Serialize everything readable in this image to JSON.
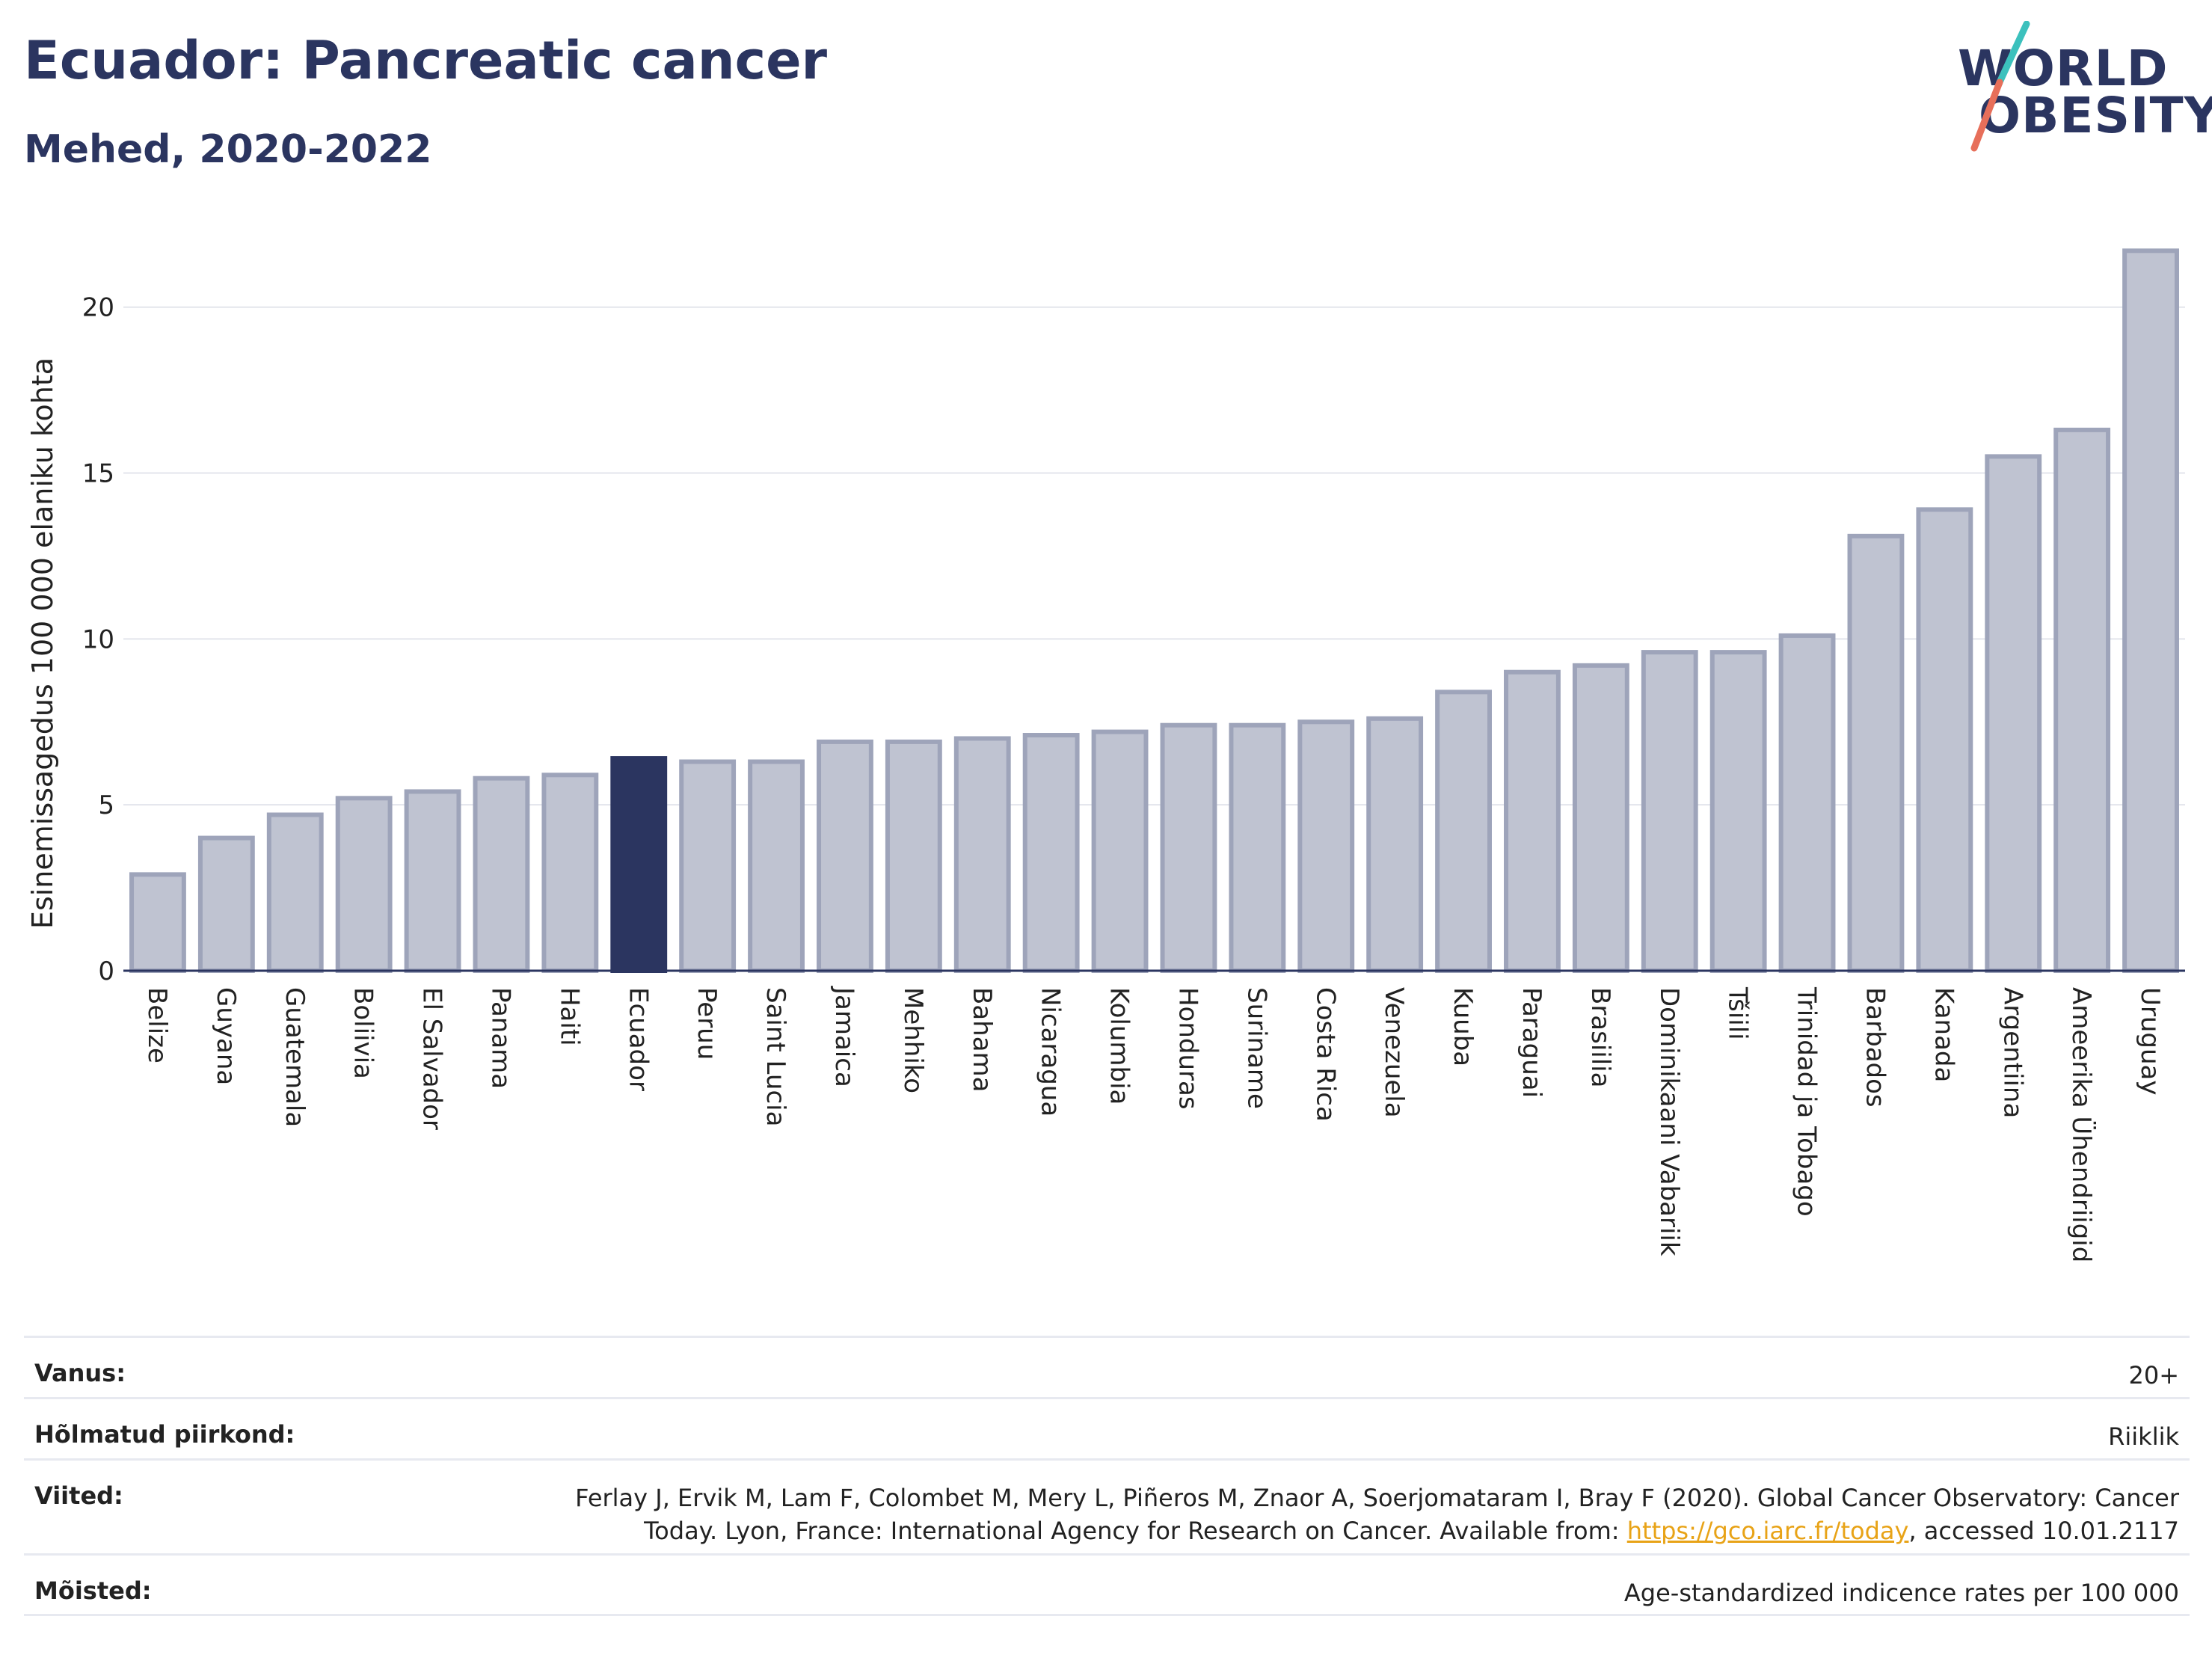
{
  "title": "Ecuador: Pancreatic cancer",
  "subtitle": "Mehed, 2020-2022",
  "logo": {
    "line1": "WORLD",
    "line2": "OBESITY"
  },
  "colors": {
    "bar": "#bfc3d1",
    "bar_border": "#9ea4ba",
    "highlight": "#2b3560",
    "title": "#2b3560",
    "accent_teal": "#3cc1bd",
    "accent_red": "#e76f5a",
    "link": "#e8a317"
  },
  "chart_data": {
    "type": "bar",
    "title": "Ecuador: Pancreatic cancer",
    "subtitle": "Mehed, 2020-2022",
    "ylabel": "Esinemissagedus 100 000 elaniku kohta",
    "xlabel": "",
    "ylim": [
      0,
      22
    ],
    "yticks": [
      0,
      5,
      10,
      15,
      20
    ],
    "grid": true,
    "highlight": "Ecuador",
    "categories": [
      "Belize",
      "Guyana",
      "Guatemala",
      "Boliivia",
      "El Salvador",
      "Panama",
      "Haiti",
      "Ecuador",
      "Peruu",
      "Saint Lucia",
      "Jamaica",
      "Mehhiko",
      "Bahama",
      "Nicaragua",
      "Kolumbia",
      "Honduras",
      "Suriname",
      "Costa Rica",
      "Venezuela",
      "Kuuba",
      "Paraguai",
      "Brasiilia",
      "Dominikaani Vabariik",
      "Tšiili",
      "Trinidad ja Tobago",
      "Barbados",
      "Kanada",
      "Argentiina",
      "Ameerika Ühendriigid",
      "Uruguay"
    ],
    "values": [
      2.9,
      4.0,
      4.7,
      5.2,
      5.4,
      5.8,
      5.9,
      6.4,
      6.3,
      6.3,
      6.9,
      6.9,
      7.0,
      7.1,
      7.2,
      7.4,
      7.4,
      7.5,
      7.6,
      8.4,
      9.0,
      9.2,
      9.6,
      9.6,
      10.1,
      13.1,
      13.9,
      15.5,
      16.3,
      21.7
    ]
  },
  "meta": {
    "age_label": "Vanus:",
    "age_value": "20+",
    "area_label": "Hõlmatud piirkond:",
    "area_value": "Riiklik",
    "ref_label": "Viited:",
    "ref_text1": "Ferlay J, Ervik M, Lam F, Colombet M, Mery L, Piñeros M, Znaor A, Soerjomataram I, Bray F (2020). Global Cancer Observatory: Cancer",
    "ref_text2": "Today. Lyon, France: International Agency for Research on Cancer. Available from: ",
    "ref_link": "https://gco.iarc.fr/today",
    "ref_text3": ", accessed 10.01.2117",
    "def_label": "Mõisted:",
    "def_value": "Age-standardized indicence rates per 100 000"
  }
}
